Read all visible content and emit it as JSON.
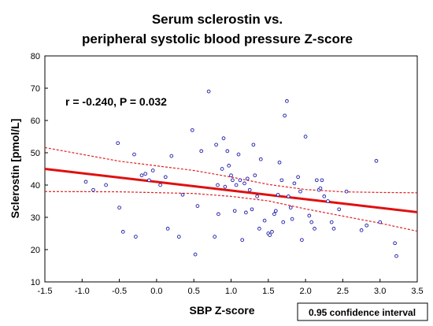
{
  "chart_data": {
    "type": "scatter",
    "title_lines": [
      "Serum sclerostin vs.",
      "peripheral systolic blood pressure Z-score"
    ],
    "xlabel": "SBP Z-score",
    "ylabel": "Sclerostin [pmol/L]",
    "xlim": [
      -1.5,
      3.5
    ],
    "ylim": [
      10,
      80
    ],
    "x_ticks": [
      "-1.5",
      "-1.0",
      "-0.5",
      "0.0",
      "0.5",
      "1.0",
      "1.5",
      "2.0",
      "2.5",
      "3.0",
      "3.5"
    ],
    "y_ticks": [
      "10",
      "20",
      "30",
      "40",
      "50",
      "60",
      "70",
      "80"
    ],
    "grid": false,
    "annotation": "r = -0.240, P = 0.032",
    "legend": "0.95 confidence interval",
    "regression_line": {
      "x": [
        -1.5,
        3.5
      ],
      "y": [
        45.0,
        31.6
      ]
    },
    "ci_upper": {
      "x": [
        -1.5,
        -0.5,
        0.5,
        1.0,
        1.5,
        2.0,
        2.5,
        3.0,
        3.5
      ],
      "y": [
        51.6,
        47.4,
        44.5,
        42.5,
        40.2,
        38.6,
        37.9,
        37.7,
        37.6
      ]
    },
    "ci_lower": {
      "x": [
        -1.5,
        -0.5,
        0.5,
        1.0,
        1.5,
        2.0,
        2.5,
        3.0,
        3.5
      ],
      "y": [
        38.0,
        37.9,
        37.4,
        36.5,
        35.1,
        32.6,
        30.4,
        28.2,
        25.7
      ]
    },
    "points": [
      [
        -0.95,
        41.0
      ],
      [
        -0.85,
        38.5
      ],
      [
        -0.68,
        40.0
      ],
      [
        -0.52,
        53.0
      ],
      [
        -0.5,
        33.0
      ],
      [
        -0.45,
        25.5
      ],
      [
        -0.3,
        49.5
      ],
      [
        -0.28,
        24.0
      ],
      [
        -0.2,
        43.0
      ],
      [
        -0.15,
        43.5
      ],
      [
        -0.1,
        41.5
      ],
      [
        -0.05,
        44.5
      ],
      [
        0.05,
        40.0
      ],
      [
        0.12,
        42.5
      ],
      [
        0.15,
        26.5
      ],
      [
        0.2,
        49.0
      ],
      [
        0.3,
        24.0
      ],
      [
        0.35,
        37.0
      ],
      [
        0.48,
        57.0
      ],
      [
        0.52,
        18.5
      ],
      [
        0.55,
        33.5
      ],
      [
        0.6,
        50.5
      ],
      [
        0.7,
        69.0
      ],
      [
        0.78,
        24.0
      ],
      [
        0.8,
        52.5
      ],
      [
        0.82,
        40.0
      ],
      [
        0.83,
        31.0
      ],
      [
        0.88,
        45.0
      ],
      [
        0.9,
        54.5
      ],
      [
        0.92,
        39.5
      ],
      [
        0.95,
        50.5
      ],
      [
        0.97,
        46.0
      ],
      [
        1.0,
        43.0
      ],
      [
        1.02,
        41.5
      ],
      [
        1.05,
        32.0
      ],
      [
        1.07,
        40.0
      ],
      [
        1.1,
        49.5
      ],
      [
        1.12,
        41.5
      ],
      [
        1.15,
        23.0
      ],
      [
        1.18,
        40.5
      ],
      [
        1.2,
        31.5
      ],
      [
        1.22,
        42.0
      ],
      [
        1.25,
        38.5
      ],
      [
        1.28,
        32.5
      ],
      [
        1.3,
        52.5
      ],
      [
        1.32,
        43.0
      ],
      [
        1.35,
        36.5
      ],
      [
        1.38,
        26.5
      ],
      [
        1.4,
        48.0
      ],
      [
        1.45,
        29.0
      ],
      [
        1.5,
        25.0
      ],
      [
        1.52,
        24.5
      ],
      [
        1.55,
        25.5
      ],
      [
        1.58,
        31.0
      ],
      [
        1.6,
        32.0
      ],
      [
        1.63,
        37.0
      ],
      [
        1.65,
        47.0
      ],
      [
        1.68,
        41.5
      ],
      [
        1.7,
        28.5
      ],
      [
        1.72,
        61.5
      ],
      [
        1.75,
        66.0
      ],
      [
        1.77,
        36.5
      ],
      [
        1.8,
        33.0
      ],
      [
        1.82,
        29.5
      ],
      [
        1.85,
        40.5
      ],
      [
        1.9,
        42.5
      ],
      [
        1.93,
        38.0
      ],
      [
        1.95,
        23.0
      ],
      [
        2.0,
        55.0
      ],
      [
        2.05,
        30.5
      ],
      [
        2.08,
        28.5
      ],
      [
        2.12,
        26.5
      ],
      [
        2.15,
        41.5
      ],
      [
        2.18,
        38.5
      ],
      [
        2.2,
        39.0
      ],
      [
        2.22,
        41.5
      ],
      [
        2.25,
        36.5
      ],
      [
        2.3,
        35.0
      ],
      [
        2.35,
        28.5
      ],
      [
        2.38,
        26.5
      ],
      [
        2.45,
        32.5
      ],
      [
        2.55,
        38.0
      ],
      [
        2.75,
        26.0
      ],
      [
        2.82,
        27.5
      ],
      [
        2.95,
        47.5
      ],
      [
        3.0,
        28.5
      ],
      [
        3.2,
        22.0
      ],
      [
        3.22,
        18.0
      ]
    ]
  }
}
